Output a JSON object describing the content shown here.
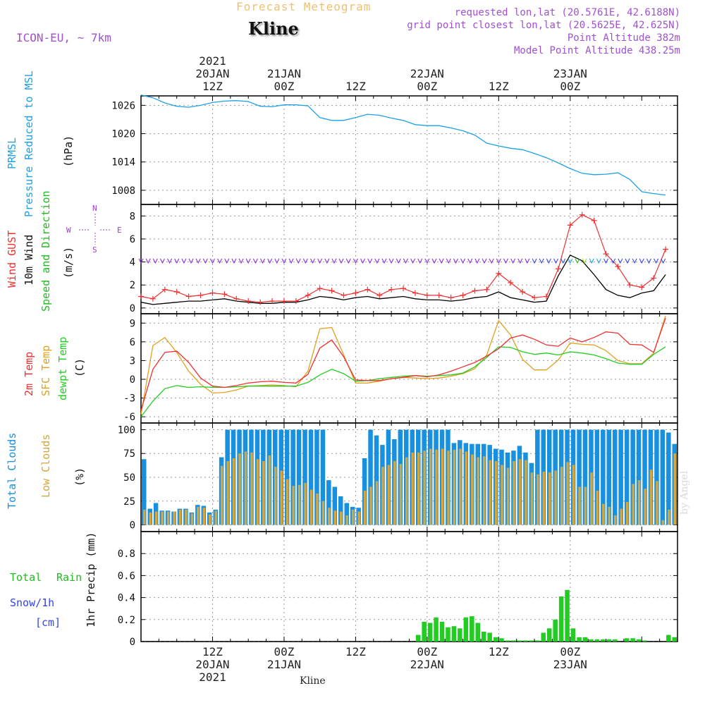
{
  "header": {
    "supertitle": "Forecast Meteogram",
    "title": "Kline",
    "model": "ICON-EU, ~ 7km",
    "requested": "requested lon,lat (20.5761E, 42.6188N)",
    "grid_point": "grid point closest lon,lat (20.5625E, 42.625N)",
    "point_altitude": "Point Altitude 382m",
    "model_altitude": "Model Point Altitude 438.25m",
    "footer": "Kline",
    "watermark": "by Angel"
  },
  "colors": {
    "pressure": "#1ea0e6",
    "gust": "#ee3030",
    "wind": "#000000",
    "direction": "#22bb22",
    "compass": "#a040d0",
    "temp2m": "#ee3030",
    "sfc_temp": "#e0a020",
    "dewpt": "#22cc22",
    "total_clouds": "#1890e0",
    "low_clouds": "#d4a640",
    "rain": "#22cc22",
    "snow": "#3344ee",
    "header_purple": "#a050d0",
    "supertitle": "#f0c070"
  },
  "time_axis": {
    "top_labels": [
      {
        "lines": [
          "2021",
          "20JAN",
          "12Z"
        ],
        "x": 12
      },
      {
        "lines": [
          "21JAN",
          "00Z"
        ],
        "x": 24
      },
      {
        "lines": [
          "12Z"
        ],
        "x": 36
      },
      {
        "lines": [
          "22JAN",
          "00Z"
        ],
        "x": 48
      },
      {
        "lines": [
          "12Z"
        ],
        "x": 60
      },
      {
        "lines": [
          "23JAN",
          "00Z"
        ],
        "x": 72
      }
    ],
    "bottom_labels": [
      {
        "lines": [
          "12Z",
          "20JAN",
          "2021"
        ],
        "x": 12
      },
      {
        "lines": [
          "00Z",
          "21JAN"
        ],
        "x": 24
      },
      {
        "lines": [
          "12Z"
        ],
        "x": 36
      },
      {
        "lines": [
          "00Z",
          "22JAN"
        ],
        "x": 48
      },
      {
        "lines": [
          "12Z"
        ],
        "x": 60
      },
      {
        "lines": [
          "00Z",
          "23JAN"
        ],
        "x": 72
      }
    ]
  },
  "panel_labels": {
    "pressure": {
      "line1": "PRMSL",
      "line2": "Pressure Reduced to MSL",
      "unit": "(hPa)"
    },
    "wind": {
      "gust": "Wind GUST",
      "wind10": "10m Wind",
      "dir": "Speed and Direction",
      "unit": "(m/s)",
      "compass_n": "N",
      "compass_s": "S",
      "compass_w": "W",
      "compass_e": "E"
    },
    "temp": {
      "t2m": "2m Temp",
      "sfc": "SFC Temp",
      "dew": "dewpt Temp",
      "unit": "(C)"
    },
    "clouds": {
      "total": "Total Clouds",
      "low": "Low Clouds",
      "unit": "(%)"
    },
    "precip": {
      "total": "Total",
      "rain": "Rain",
      "snow": "Snow/1h",
      "cm": "[cm]",
      "axis": "1hr Precip (mm)"
    }
  },
  "chart_data": [
    {
      "id": "pressure",
      "type": "line",
      "title": "PRMSL Pressure Reduced to MSL",
      "ylabel": "(hPa)",
      "ylim": [
        1005,
        1028
      ],
      "yticks": [
        1008,
        1014,
        1020,
        1026
      ],
      "x": [
        0,
        2,
        4,
        6,
        8,
        10,
        12,
        14,
        16,
        18,
        20,
        22,
        24,
        26,
        28,
        30,
        32,
        34,
        36,
        38,
        40,
        42,
        44,
        46,
        48,
        50,
        52,
        54,
        56,
        58,
        60,
        62,
        64,
        66,
        68,
        70,
        72,
        74,
        76,
        78,
        80,
        82,
        84,
        86,
        88
      ],
      "series": [
        {
          "name": "PRMSL",
          "values": [
            1028.2,
            1027.6,
            1026.5,
            1025.8,
            1025.6,
            1026.0,
            1026.6,
            1026.9,
            1027.0,
            1026.8,
            1025.8,
            1025.7,
            1026.1,
            1026.1,
            1025.9,
            1023.4,
            1022.8,
            1022.8,
            1023.4,
            1024.1,
            1023.9,
            1023.3,
            1022.8,
            1021.9,
            1021.7,
            1021.7,
            1021.2,
            1020.6,
            1019.7,
            1018.0,
            1017.4,
            1016.9,
            1016.6,
            1015.8,
            1014.9,
            1013.8,
            1012.6,
            1011.6,
            1011.3,
            1011.4,
            1011.7,
            1010.3,
            1007.7,
            1007.3,
            1007.0
          ]
        }
      ]
    },
    {
      "id": "wind",
      "type": "line",
      "title": "Wind GUST / 10m Wind Speed and Direction",
      "ylabel": "(m/s)",
      "ylim": [
        -0.5,
        9.0
      ],
      "yticks": [
        0,
        2,
        4,
        6,
        8
      ],
      "x": [
        0,
        2,
        4,
        6,
        8,
        10,
        12,
        14,
        16,
        18,
        20,
        22,
        24,
        26,
        28,
        30,
        32,
        34,
        36,
        38,
        40,
        42,
        44,
        46,
        48,
        50,
        52,
        54,
        56,
        58,
        60,
        62,
        64,
        66,
        68,
        70,
        72,
        74,
        76,
        78,
        80,
        82,
        84,
        86,
        88
      ],
      "series": [
        {
          "name": "Wind GUST",
          "values": [
            1.0,
            0.8,
            1.6,
            1.4,
            1.0,
            1.1,
            1.3,
            1.2,
            0.8,
            0.6,
            0.5,
            0.6,
            0.6,
            0.6,
            1.1,
            1.7,
            1.5,
            1.1,
            1.3,
            1.6,
            1.1,
            1.6,
            1.7,
            1.3,
            1.1,
            1.1,
            0.9,
            1.1,
            1.5,
            1.6,
            3.0,
            2.2,
            1.4,
            0.9,
            1.0,
            3.4,
            7.2,
            8.1,
            7.6,
            4.7,
            3.6,
            2.0,
            1.8,
            2.6,
            5.1
          ]
        },
        {
          "name": "10m Wind",
          "values": [
            0.5,
            0.3,
            0.4,
            0.5,
            0.6,
            0.6,
            0.7,
            0.8,
            0.6,
            0.5,
            0.4,
            0.4,
            0.5,
            0.5,
            0.7,
            1.0,
            0.9,
            0.7,
            0.9,
            1.0,
            0.8,
            0.9,
            1.0,
            0.8,
            0.7,
            0.7,
            0.6,
            0.7,
            0.9,
            1.0,
            1.4,
            0.9,
            0.7,
            0.5,
            0.6,
            2.8,
            4.6,
            4.1,
            2.9,
            1.6,
            1.1,
            0.9,
            1.3,
            1.5,
            2.9
          ]
        }
      ]
    },
    {
      "id": "temp",
      "type": "line",
      "title": "2m Temp / SFC Temp / dewpt Temp",
      "ylabel": "(C)",
      "ylim": [
        -7.0,
        10.5
      ],
      "yticks": [
        -6,
        -3,
        0,
        3,
        6,
        9
      ],
      "x": [
        0,
        2,
        4,
        6,
        8,
        10,
        12,
        14,
        16,
        18,
        20,
        22,
        24,
        26,
        28,
        30,
        32,
        34,
        36,
        38,
        40,
        42,
        44,
        46,
        48,
        50,
        52,
        54,
        56,
        58,
        60,
        62,
        64,
        66,
        68,
        70,
        72,
        74,
        76,
        78,
        80,
        82,
        84,
        86,
        88
      ],
      "series": [
        {
          "name": "2m Temp",
          "values": [
            -5.0,
            1.6,
            4.3,
            4.5,
            2.7,
            0.2,
            -1.1,
            -1.3,
            -1.0,
            -0.6,
            -0.4,
            -0.3,
            -0.5,
            -0.6,
            0.8,
            5.0,
            6.3,
            3.6,
            -0.1,
            -0.2,
            -0.2,
            0.1,
            0.3,
            0.6,
            0.4,
            0.7,
            1.3,
            2.0,
            2.7,
            3.7,
            4.9,
            6.6,
            7.1,
            6.4,
            5.5,
            5.3,
            6.6,
            6.0,
            6.7,
            7.6,
            7.4,
            5.6,
            5.5,
            4.3,
            9.8
          ]
        },
        {
          "name": "SFC Temp",
          "values": [
            -5.6,
            5.4,
            6.7,
            4.3,
            1.3,
            -0.8,
            -2.2,
            -2.1,
            -1.7,
            -1.1,
            -1.0,
            -0.9,
            -1.0,
            -1.2,
            1.3,
            8.1,
            8.3,
            3.9,
            -0.6,
            -0.6,
            -0.3,
            0.1,
            0.3,
            0.2,
            0.1,
            0.2,
            0.5,
            0.9,
            1.7,
            3.9,
            9.4,
            7.1,
            3.2,
            1.5,
            1.5,
            3.1,
            5.8,
            5.6,
            5.5,
            4.6,
            3.0,
            2.5,
            2.5,
            4.2,
            10.2
          ]
        },
        {
          "name": "dewpt Temp",
          "values": [
            -6.0,
            -3.5,
            -1.5,
            -1.0,
            -1.3,
            -1.2,
            -1.3,
            -1.3,
            -1.2,
            -1.1,
            -1.1,
            -1.1,
            -1.1,
            -1.1,
            -0.5,
            0.7,
            1.6,
            0.9,
            -0.3,
            -0.2,
            0.1,
            0.3,
            0.5,
            0.6,
            0.5,
            0.6,
            0.7,
            1.0,
            2.0,
            3.5,
            5.2,
            5.1,
            4.4,
            4.0,
            4.2,
            3.9,
            4.4,
            4.2,
            3.9,
            3.3,
            2.6,
            2.4,
            2.4,
            4.0,
            5.2
          ]
        }
      ]
    },
    {
      "id": "clouds",
      "type": "bar",
      "title": "Total Clouds / Low Clouds",
      "ylabel": "(%)",
      "ylim": [
        -7,
        107
      ],
      "yticks": [
        0,
        25,
        50,
        75,
        100
      ],
      "x": [
        0,
        1,
        2,
        3,
        4,
        5,
        6,
        7,
        8,
        9,
        10,
        11,
        12,
        13,
        14,
        15,
        16,
        17,
        18,
        19,
        20,
        21,
        22,
        23,
        24,
        25,
        26,
        27,
        28,
        29,
        30,
        31,
        32,
        33,
        34,
        35,
        36,
        37,
        38,
        39,
        40,
        41,
        42,
        43,
        44,
        45,
        46,
        47,
        48,
        49,
        50,
        51,
        52,
        53,
        54,
        55,
        56,
        57,
        58,
        59,
        60,
        61,
        62,
        63,
        64,
        65,
        66,
        67,
        68,
        69,
        70,
        71,
        72,
        73,
        74,
        75,
        76,
        77,
        78,
        79,
        80,
        81,
        82,
        83,
        84,
        85,
        86,
        87,
        88,
        89
      ],
      "series": [
        {
          "name": "Total Clouds",
          "values": [
            69,
            17,
            23,
            15,
            15,
            14,
            17,
            17,
            13,
            21,
            20,
            13,
            16,
            71,
            100,
            100,
            100,
            100,
            100,
            100,
            100,
            100,
            100,
            100,
            100,
            100,
            100,
            100,
            100,
            100,
            100,
            47,
            40,
            30,
            23,
            19,
            18,
            70,
            100,
            94,
            84,
            100,
            90,
            100,
            100,
            100,
            100,
            100,
            100,
            100,
            100,
            100,
            86,
            89,
            86,
            85,
            85,
            85,
            84,
            80,
            79,
            76,
            78,
            83,
            76,
            65,
            100,
            100,
            100,
            100,
            100,
            100,
            100,
            100,
            100,
            100,
            100,
            100,
            100,
            100,
            100,
            100,
            100,
            100,
            100,
            100,
            100,
            100,
            97,
            85
          ]
        },
        {
          "name": "Low Clouds",
          "values": [
            16,
            13,
            14,
            14,
            14,
            14,
            16,
            16,
            12,
            19,
            18,
            11,
            15,
            62,
            67,
            70,
            75,
            77,
            76,
            69,
            67,
            73,
            61,
            57,
            48,
            41,
            42,
            44,
            37,
            33,
            25,
            18,
            15,
            14,
            10,
            16,
            14,
            36,
            40,
            46,
            61,
            63,
            67,
            64,
            71,
            76,
            76,
            78,
            80,
            79,
            80,
            78,
            79,
            80,
            77,
            74,
            71,
            72,
            68,
            67,
            63,
            60,
            67,
            69,
            68,
            55,
            53,
            56,
            55,
            57,
            61,
            66,
            63,
            40,
            40,
            55,
            36,
            22,
            19,
            10,
            17,
            24,
            43,
            47,
            38,
            58,
            46,
            5,
            16,
            75
          ]
        }
      ]
    },
    {
      "id": "precip",
      "type": "bar",
      "title": "1hr Precip (mm)",
      "ylabel": "1hr Precip (mm)",
      "ylim": [
        0,
        1.0
      ],
      "yticks": [
        0,
        0.2,
        0.4,
        0.6,
        0.8
      ],
      "x": [
        0,
        1,
        2,
        3,
        4,
        5,
        6,
        7,
        8,
        9,
        10,
        11,
        12,
        13,
        14,
        15,
        16,
        17,
        18,
        19,
        20,
        21,
        22,
        23,
        24,
        25,
        26,
        27,
        28,
        29,
        30,
        31,
        32,
        33,
        34,
        35,
        36,
        37,
        38,
        39,
        40,
        41,
        42,
        43,
        44,
        45,
        46,
        47,
        48,
        49,
        50,
        51,
        52,
        53,
        54,
        55,
        56,
        57,
        58,
        59,
        60,
        61,
        62,
        63,
        64,
        65,
        66,
        67,
        68,
        69,
        70,
        71,
        72,
        73,
        74,
        75,
        76,
        77,
        78,
        79,
        80,
        81,
        82,
        83,
        84,
        85,
        86,
        87,
        88,
        89
      ],
      "series": [
        {
          "name": "Total Rain",
          "values": [
            0,
            0,
            0,
            0,
            0,
            0,
            0,
            0,
            0,
            0,
            0,
            0,
            0,
            0,
            0,
            0,
            0,
            0,
            0,
            0,
            0,
            0,
            0,
            0,
            0,
            0,
            0,
            0,
            0,
            0,
            0,
            0,
            0,
            0,
            0,
            0,
            0,
            0,
            0,
            0,
            0,
            0,
            0,
            0,
            0,
            0,
            0.06,
            0.18,
            0.17,
            0.22,
            0.18,
            0.13,
            0.14,
            0.12,
            0.22,
            0.23,
            0.17,
            0.09,
            0.08,
            0.04,
            0.03,
            0.01,
            0.01,
            0.01,
            0.01,
            0.01,
            0.01,
            0.08,
            0.12,
            0.2,
            0.41,
            0.47,
            0.12,
            0.04,
            0.04,
            0.02,
            0.02,
            0.02,
            0.02,
            0.02,
            0.0,
            0.03,
            0.03,
            0.02,
            0.01,
            0.0,
            0.0,
            0.0,
            0.06,
            0.04
          ]
        },
        {
          "name": "Snow/1h",
          "values": [
            0,
            0,
            0,
            0,
            0,
            0,
            0,
            0,
            0,
            0,
            0,
            0,
            0,
            0,
            0,
            0,
            0,
            0,
            0,
            0,
            0,
            0,
            0,
            0,
            0,
            0,
            0,
            0,
            0,
            0,
            0,
            0,
            0,
            0,
            0,
            0,
            0,
            0,
            0,
            0,
            0,
            0,
            0,
            0,
            0,
            0,
            0,
            0,
            0,
            0,
            0,
            0,
            0,
            0,
            0,
            0,
            0,
            0,
            0,
            0,
            0,
            0,
            0,
            0,
            0,
            0,
            0,
            0,
            0,
            0,
            0,
            0,
            0,
            0,
            0,
            0,
            0,
            0,
            0,
            0,
            0,
            0,
            0,
            0,
            0,
            0,
            0,
            0,
            0,
            0
          ]
        }
      ]
    }
  ]
}
